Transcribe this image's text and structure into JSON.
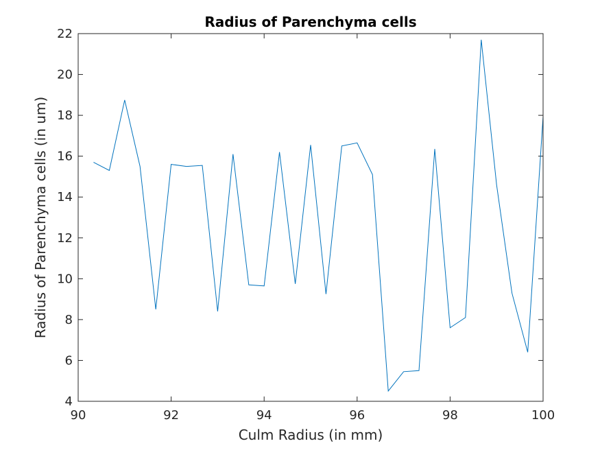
{
  "chart_data": {
    "type": "line",
    "title": "Radius of Parenchyma cells",
    "xlabel": "Culm Radius (in mm)",
    "ylabel": "Radius of Parenchyma cells (in um)",
    "xlim": [
      90,
      100
    ],
    "ylim": [
      4,
      22
    ],
    "xticks": [
      "90",
      "92",
      "94",
      "96",
      "98",
      "100"
    ],
    "yticks": [
      "4",
      "6",
      "8",
      "10",
      "12",
      "14",
      "16",
      "18",
      "20",
      "22"
    ],
    "grid": false,
    "line_color": "#0072BD",
    "series": [
      {
        "x": [
          90.33,
          90.67,
          91.0,
          91.33,
          91.67,
          92.0,
          92.33,
          92.67,
          93.0,
          93.33,
          93.67,
          94.0,
          94.33,
          94.67,
          95.0,
          95.33,
          95.67,
          96.0,
          96.33,
          96.67,
          97.0,
          97.33,
          97.67,
          98.0,
          98.33,
          98.67,
          99.0,
          99.33,
          99.67,
          100.0
        ],
        "y": [
          15.7,
          15.3,
          18.75,
          15.5,
          8.5,
          15.6,
          15.5,
          15.55,
          8.4,
          16.1,
          9.7,
          9.65,
          16.2,
          9.75,
          16.55,
          9.25,
          16.5,
          16.65,
          15.1,
          4.5,
          5.45,
          5.5,
          16.35,
          7.6,
          8.1,
          21.7,
          14.6,
          9.3,
          6.4,
          17.95
        ]
      }
    ]
  }
}
